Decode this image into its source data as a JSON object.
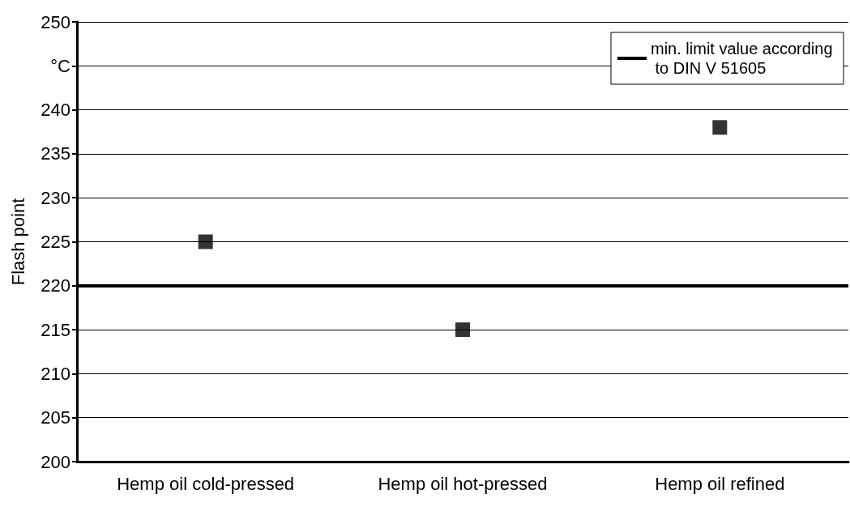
{
  "chart_data": {
    "type": "scatter",
    "ylabel": "Flash point",
    "categories": [
      "Hemp oil cold-pressed",
      "Hemp oil hot-pressed",
      "Hemp oil refined"
    ],
    "series": [
      {
        "color": "#000000",
        "values": [
          225,
          215,
          238
        ]
      }
    ],
    "ylim": [
      200,
      250
    ],
    "yticks": [
      200,
      205,
      210,
      215,
      220,
      225,
      230,
      235,
      240,
      {
        "value": 245,
        "label": "°C"
      },
      250
    ],
    "grid": "y",
    "marker": "square",
    "legend": "top right",
    "ref_lines": [
      {
        "axis": "y",
        "value": 220,
        "label": "min. limit value according to DIN V 51605",
        "color": "#000000",
        "line_style": "solid"
      }
    ]
  }
}
